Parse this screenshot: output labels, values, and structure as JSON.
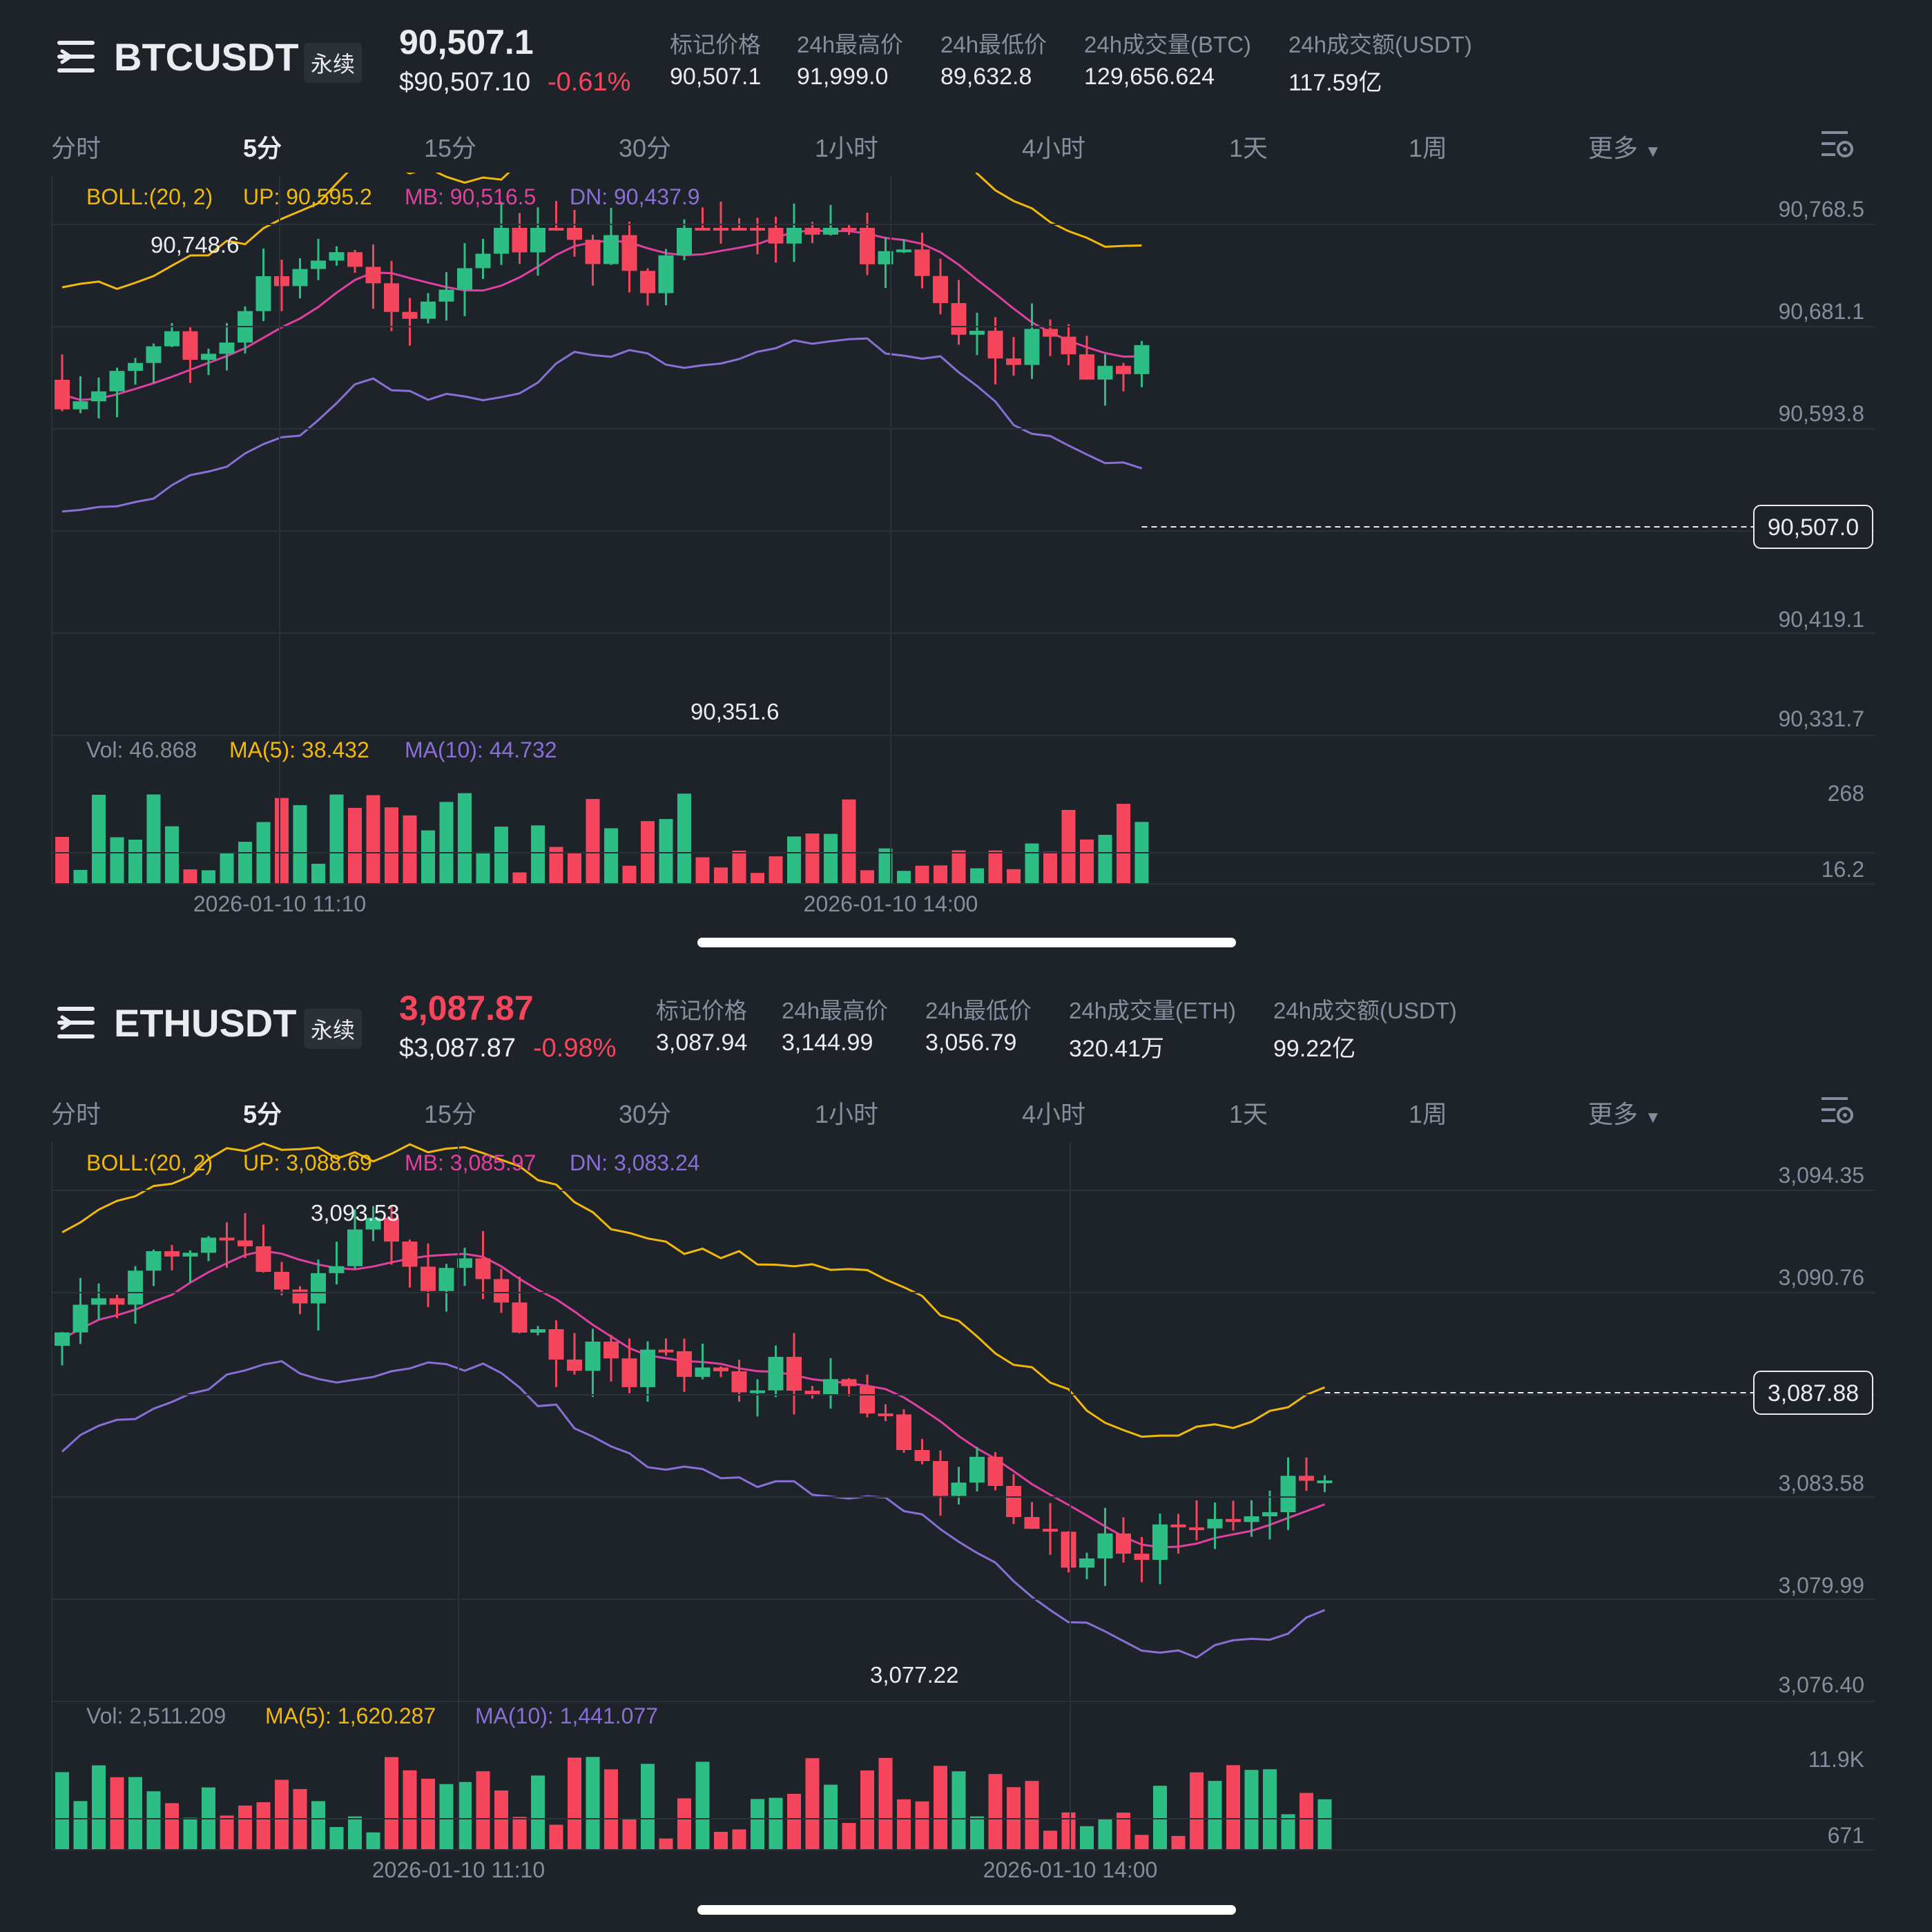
{
  "colors": {
    "up": "#2ebd85",
    "down": "#f6465d",
    "boll_up": "#f0b90b",
    "boll_mb": "#e040a0",
    "boll_dn": "#8a6fd6",
    "text": "#eaecef",
    "muted": "#848e9c",
    "bg": "#1e2329"
  },
  "tabs": [
    "分时",
    "5分",
    "15分",
    "30分",
    "1小时",
    "4小时",
    "1天",
    "1周",
    "更多"
  ],
  "active_tab": "5分",
  "icons": {
    "menu": "menu-lines-icon",
    "settings": "chart-settings-icon",
    "dropdown": "caret-down-icon"
  },
  "btc": {
    "symbol": "BTCUSDT",
    "contract": "永续",
    "last_price": "90,507.1",
    "usd_price": "$90,507.10",
    "change": "-0.61%",
    "stats": [
      {
        "label": "标记价格",
        "value": "90,507.1"
      },
      {
        "label": "24h最高价",
        "value": "91,999.0"
      },
      {
        "label": "24h最低价",
        "value": "89,632.8"
      },
      {
        "label": "24h成交量(BTC)",
        "value": "129,656.624"
      },
      {
        "label": "24h成交额(USDT)",
        "value": "117.59亿"
      }
    ],
    "boll": {
      "label": "BOLL:(20, 2)",
      "up": "UP: 90,595.2",
      "mb": "MB: 90,516.5",
      "dn": "DN: 90,437.9"
    },
    "price_axis": [
      "90,768.5",
      "90,681.1",
      "90,593.8",
      "90,419.1",
      "90,331.7"
    ],
    "current_price_tag": "90,507.0",
    "high_mark": "90,748.6",
    "low_mark": "90,351.6",
    "vol": {
      "vol": "Vol: 46.868",
      "ma5": "MA(5): 38.432",
      "ma10": "MA(10): 44.732",
      "axis": [
        "268",
        "16.2"
      ]
    },
    "time_axis": [
      "2026-01-10 11:10",
      "2026-01-10 14:00"
    ]
  },
  "eth": {
    "symbol": "ETHUSDT",
    "contract": "永续",
    "last_price": "3,087.87",
    "usd_price": "$3,087.87",
    "change": "-0.98%",
    "stats": [
      {
        "label": "标记价格",
        "value": "3,087.94"
      },
      {
        "label": "24h最高价",
        "value": "3,144.99"
      },
      {
        "label": "24h最低价",
        "value": "3,056.79"
      },
      {
        "label": "24h成交量(ETH)",
        "value": "320.41万"
      },
      {
        "label": "24h成交额(USDT)",
        "value": "99.22亿"
      }
    ],
    "boll": {
      "label": "BOLL:(20, 2)",
      "up": "UP: 3,088.69",
      "mb": "MB: 3,085.97",
      "dn": "DN: 3,083.24"
    },
    "price_axis": [
      "3,094.35",
      "3,090.76",
      "3,083.58",
      "3,079.99",
      "3,076.40"
    ],
    "current_price_tag": "3,087.88",
    "high_mark": "3,093.53",
    "low_mark": "3,077.22",
    "vol": {
      "vol": "Vol: 2,511.209",
      "ma5": "MA(5): 1,620.287",
      "ma10": "MA(10): 1,441.077",
      "axis": [
        "11.9K",
        "671"
      ]
    },
    "time_axis": [
      "2026-01-10 11:10",
      "2026-01-10 14:00"
    ]
  }
}
